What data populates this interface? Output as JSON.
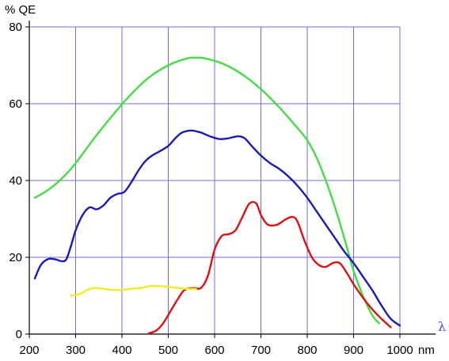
{
  "chart_data": {
    "type": "line",
    "ylabel": "% QE",
    "xlabel": "nm",
    "x_symbol": "λ",
    "xlim": [
      200,
      1000
    ],
    "ylim": [
      0,
      80
    ],
    "x_ticks": [
      200,
      300,
      400,
      500,
      600,
      700,
      800,
      900,
      1000
    ],
    "y_ticks": [
      0,
      20,
      40,
      60,
      80
    ],
    "grid": true,
    "colors": {
      "grid": "#6f6fd6",
      "axis": "#000000",
      "lambda": "#4a4ad8"
    },
    "series": [
      {
        "color": "#44dd44",
        "points": [
          [
            212,
            35.5
          ],
          [
            240,
            37.5
          ],
          [
            270,
            40.5
          ],
          [
            300,
            44.5
          ],
          [
            340,
            51
          ],
          [
            380,
            57
          ],
          [
            420,
            62.5
          ],
          [
            460,
            67
          ],
          [
            500,
            70
          ],
          [
            540,
            71.8
          ],
          [
            560,
            72
          ],
          [
            580,
            71.8
          ],
          [
            620,
            70.3
          ],
          [
            660,
            67.6
          ],
          [
            700,
            63.8
          ],
          [
            740,
            59
          ],
          [
            780,
            53.5
          ],
          [
            800,
            50.5
          ],
          [
            820,
            46
          ],
          [
            840,
            40
          ],
          [
            860,
            33
          ],
          [
            880,
            25
          ],
          [
            900,
            16.5
          ],
          [
            920,
            10
          ],
          [
            940,
            5
          ],
          [
            955,
            2.8
          ]
        ]
      },
      {
        "color": "#1a1ab8",
        "points": [
          [
            212,
            14.5
          ],
          [
            225,
            18
          ],
          [
            240,
            19.5
          ],
          [
            255,
            19.5
          ],
          [
            270,
            19
          ],
          [
            280,
            19.5
          ],
          [
            290,
            23
          ],
          [
            300,
            27
          ],
          [
            315,
            31
          ],
          [
            330,
            33
          ],
          [
            345,
            32.5
          ],
          [
            360,
            33.5
          ],
          [
            375,
            35.5
          ],
          [
            390,
            36.5
          ],
          [
            405,
            37
          ],
          [
            420,
            39.5
          ],
          [
            435,
            42.5
          ],
          [
            450,
            45
          ],
          [
            465,
            46.5
          ],
          [
            480,
            47.5
          ],
          [
            500,
            49
          ],
          [
            515,
            51
          ],
          [
            530,
            52.5
          ],
          [
            550,
            53
          ],
          [
            570,
            52.5
          ],
          [
            590,
            51.5
          ],
          [
            610,
            50.8
          ],
          [
            630,
            51
          ],
          [
            650,
            51.5
          ],
          [
            665,
            51
          ],
          [
            680,
            49
          ],
          [
            700,
            46.5
          ],
          [
            720,
            44.5
          ],
          [
            740,
            43
          ],
          [
            760,
            41
          ],
          [
            780,
            38.5
          ],
          [
            800,
            35.5
          ],
          [
            820,
            32
          ],
          [
            840,
            28.5
          ],
          [
            860,
            25
          ],
          [
            880,
            21.5
          ],
          [
            900,
            18.5
          ],
          [
            920,
            15
          ],
          [
            940,
            11.5
          ],
          [
            960,
            7.5
          ],
          [
            980,
            4
          ],
          [
            1000,
            2.2
          ]
        ]
      },
      {
        "color": "#dd1111",
        "points": [
          [
            458,
            0.2
          ],
          [
            475,
            1
          ],
          [
            490,
            3
          ],
          [
            505,
            6
          ],
          [
            520,
            9
          ],
          [
            535,
            11.5
          ],
          [
            555,
            12
          ],
          [
            570,
            12
          ],
          [
            585,
            15
          ],
          [
            600,
            22
          ],
          [
            615,
            25.5
          ],
          [
            630,
            26
          ],
          [
            645,
            27
          ],
          [
            660,
            30.5
          ],
          [
            675,
            34
          ],
          [
            690,
            34
          ],
          [
            700,
            31
          ],
          [
            715,
            28.5
          ],
          [
            735,
            28.5
          ],
          [
            755,
            30
          ],
          [
            770,
            30.5
          ],
          [
            780,
            29
          ],
          [
            795,
            24
          ],
          [
            810,
            20
          ],
          [
            825,
            18
          ],
          [
            840,
            17.5
          ],
          [
            855,
            18.5
          ],
          [
            870,
            18.5
          ],
          [
            885,
            16
          ],
          [
            900,
            13
          ],
          [
            920,
            9.5
          ],
          [
            940,
            6.5
          ],
          [
            960,
            4
          ],
          [
            980,
            1.8
          ]
        ]
      },
      {
        "color": "#eeee22",
        "points": [
          [
            290,
            10
          ],
          [
            310,
            10.5
          ],
          [
            325,
            11.5
          ],
          [
            340,
            12
          ],
          [
            360,
            11.8
          ],
          [
            380,
            11.5
          ],
          [
            400,
            11.5
          ],
          [
            420,
            11.8
          ],
          [
            440,
            12
          ],
          [
            460,
            12.5
          ],
          [
            480,
            12.5
          ],
          [
            500,
            12.3
          ],
          [
            520,
            12
          ],
          [
            540,
            11.8
          ],
          [
            560,
            11.8
          ]
        ]
      }
    ]
  }
}
